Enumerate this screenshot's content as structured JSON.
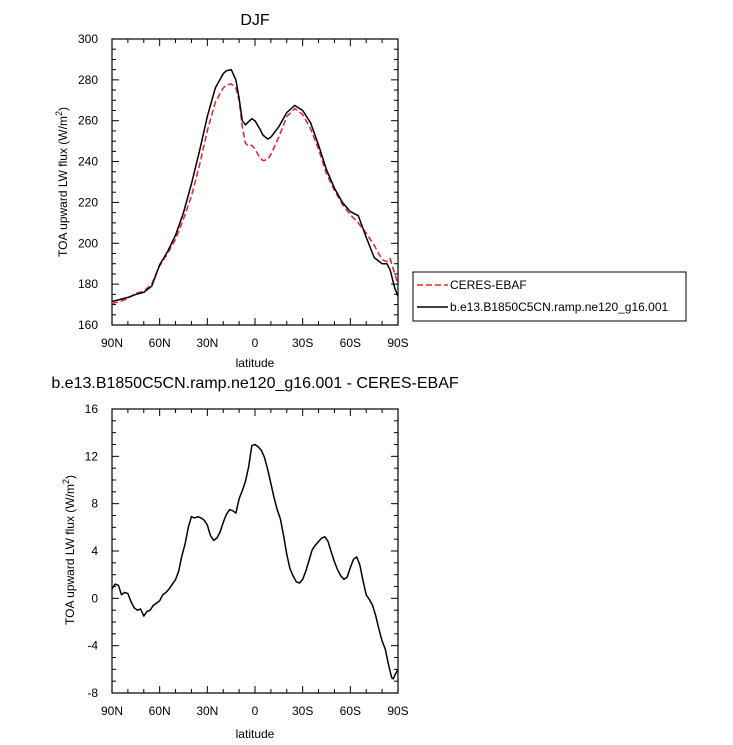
{
  "chart_data": [
    {
      "type": "line",
      "title": "DJF",
      "xlabel": "latitude",
      "ylabel": "TOA upward LW flux (W/m",
      "ylabel_sup": "2",
      "ylabel_tail": ")",
      "xlim": [
        90,
        -90
      ],
      "ylim": [
        160,
        300
      ],
      "x_ticks": [
        {
          "v": 90,
          "label": "90N"
        },
        {
          "v": 60,
          "label": "60N"
        },
        {
          "v": 30,
          "label": "30N"
        },
        {
          "v": 0,
          "label": "0"
        },
        {
          "v": -30,
          "label": "30S"
        },
        {
          "v": -60,
          "label": "60S"
        },
        {
          "v": -90,
          "label": "90S"
        }
      ],
      "y_ticks": [
        160,
        180,
        200,
        220,
        240,
        260,
        280,
        300
      ],
      "grid": false,
      "legend": {
        "placement": "right-outside"
      },
      "series": [
        {
          "name": "CERES-EBAF",
          "color": "#e8202a",
          "dash": "dashed",
          "x": [
            90,
            85,
            80,
            75,
            70,
            65,
            60,
            55,
            50,
            45,
            40,
            35,
            30,
            25,
            20,
            18,
            15,
            12,
            10,
            8,
            6,
            4,
            2,
            0,
            -3,
            -5,
            -8,
            -10,
            -15,
            -20,
            -25,
            -30,
            -35,
            -40,
            -45,
            -50,
            -55,
            -60,
            -65,
            -70,
            -75,
            -80,
            -83,
            -85,
            -88,
            -90
          ],
          "y": [
            170.5,
            171.5,
            173,
            175.5,
            176.5,
            180,
            189,
            195,
            202,
            212,
            223,
            238,
            255,
            269,
            276,
            277.5,
            278,
            276,
            270,
            257,
            249,
            247.5,
            248,
            246,
            242,
            240.5,
            241,
            243.5,
            252,
            262,
            266,
            263,
            256,
            246,
            234,
            226,
            219,
            214,
            210,
            205,
            199,
            192,
            191,
            192.5,
            185,
            180
          ]
        },
        {
          "name": "b.e13.B1850C5CN.ramp.ne120_g16.001",
          "color": "#000000",
          "dash": "solid",
          "x": [
            90,
            85,
            80,
            75,
            70,
            65,
            60,
            55,
            50,
            45,
            40,
            35,
            30,
            25,
            20,
            18,
            15,
            12,
            10,
            8,
            6,
            4,
            2,
            0,
            -3,
            -5,
            -8,
            -10,
            -15,
            -20,
            -25,
            -30,
            -35,
            -40,
            -45,
            -50,
            -55,
            -60,
            -65,
            -70,
            -75,
            -80,
            -83,
            -85,
            -88,
            -90
          ],
          "y": [
            171.5,
            172.5,
            173.5,
            175,
            176,
            179,
            189.5,
            196,
            204,
            215,
            229,
            245,
            262,
            276,
            283,
            284.5,
            285,
            280,
            271,
            260,
            258,
            259.5,
            261,
            260,
            256,
            253,
            251,
            252,
            257,
            264,
            267.5,
            265,
            259,
            248,
            236,
            227,
            220,
            215.5,
            213.5,
            203,
            193,
            190,
            190,
            187,
            178,
            174
          ]
        }
      ]
    },
    {
      "type": "line",
      "title": "b.e13.B1850C5CN.ramp.ne120_g16.001 - CERES-EBAF",
      "xlabel": "latitude",
      "ylabel": "TOA upward LW flux (W/m",
      "ylabel_sup": "2",
      "ylabel_tail": ")",
      "xlim": [
        90,
        -90
      ],
      "ylim": [
        -8,
        16
      ],
      "x_ticks": [
        {
          "v": 90,
          "label": "90N"
        },
        {
          "v": 60,
          "label": "60N"
        },
        {
          "v": 30,
          "label": "30N"
        },
        {
          "v": 0,
          "label": "0"
        },
        {
          "v": -30,
          "label": "30S"
        },
        {
          "v": -60,
          "label": "60S"
        },
        {
          "v": -90,
          "label": "90S"
        }
      ],
      "y_ticks": [
        -8,
        -4,
        0,
        4,
        8,
        12,
        16
      ],
      "grid": false,
      "series": [
        {
          "color": "#000000",
          "dash": "solid",
          "x": [
            90,
            88,
            86,
            84,
            82,
            80,
            78,
            76,
            74,
            72,
            70,
            68,
            66,
            64,
            62,
            60,
            58,
            56,
            54,
            52,
            50,
            48,
            46,
            44,
            42,
            40,
            38,
            36,
            34,
            32,
            30,
            28,
            26,
            24,
            22,
            20,
            18,
            16,
            14,
            12,
            10,
            8,
            6,
            4,
            2,
            0,
            -2,
            -4,
            -6,
            -8,
            -10,
            -12,
            -14,
            -16,
            -18,
            -20,
            -22,
            -24,
            -26,
            -28,
            -30,
            -32,
            -34,
            -36,
            -38,
            -40,
            -42,
            -44,
            -46,
            -48,
            -50,
            -52,
            -54,
            -56,
            -58,
            -60,
            -62,
            -64,
            -66,
            -68,
            -70,
            -72,
            -74,
            -76,
            -78,
            -80,
            -82,
            -84,
            -86,
            -87,
            -88,
            -90
          ],
          "y": [
            0.8,
            1.2,
            1.1,
            0.3,
            0.5,
            0.4,
            -0.3,
            -0.8,
            -1.0,
            -0.9,
            -1.5,
            -1.1,
            -1.0,
            -0.6,
            -0.4,
            -0.2,
            0.3,
            0.5,
            0.8,
            1.2,
            1.6,
            2.3,
            3.6,
            4.6,
            6.0,
            6.9,
            6.8,
            6.9,
            6.8,
            6.6,
            6.2,
            5.3,
            4.9,
            5.1,
            5.6,
            6.4,
            7.1,
            7.5,
            7.4,
            7.2,
            8.4,
            9.1,
            9.9,
            11.1,
            12.9,
            13.0,
            12.8,
            12.5,
            11.9,
            10.9,
            9.7,
            8.5,
            7.5,
            6.7,
            5.3,
            3.7,
            2.5,
            1.9,
            1.4,
            1.3,
            1.6,
            2.3,
            3.2,
            4.1,
            4.5,
            4.8,
            5.1,
            5.2,
            4.8,
            3.9,
            3.1,
            2.4,
            1.9,
            1.6,
            1.8,
            2.6,
            3.3,
            3.5,
            2.8,
            1.5,
            0.3,
            -0.1,
            -0.6,
            -1.5,
            -2.6,
            -3.6,
            -4.3,
            -5.6,
            -6.7,
            -6.8,
            -6.5,
            -6.0
          ]
        }
      ]
    }
  ]
}
